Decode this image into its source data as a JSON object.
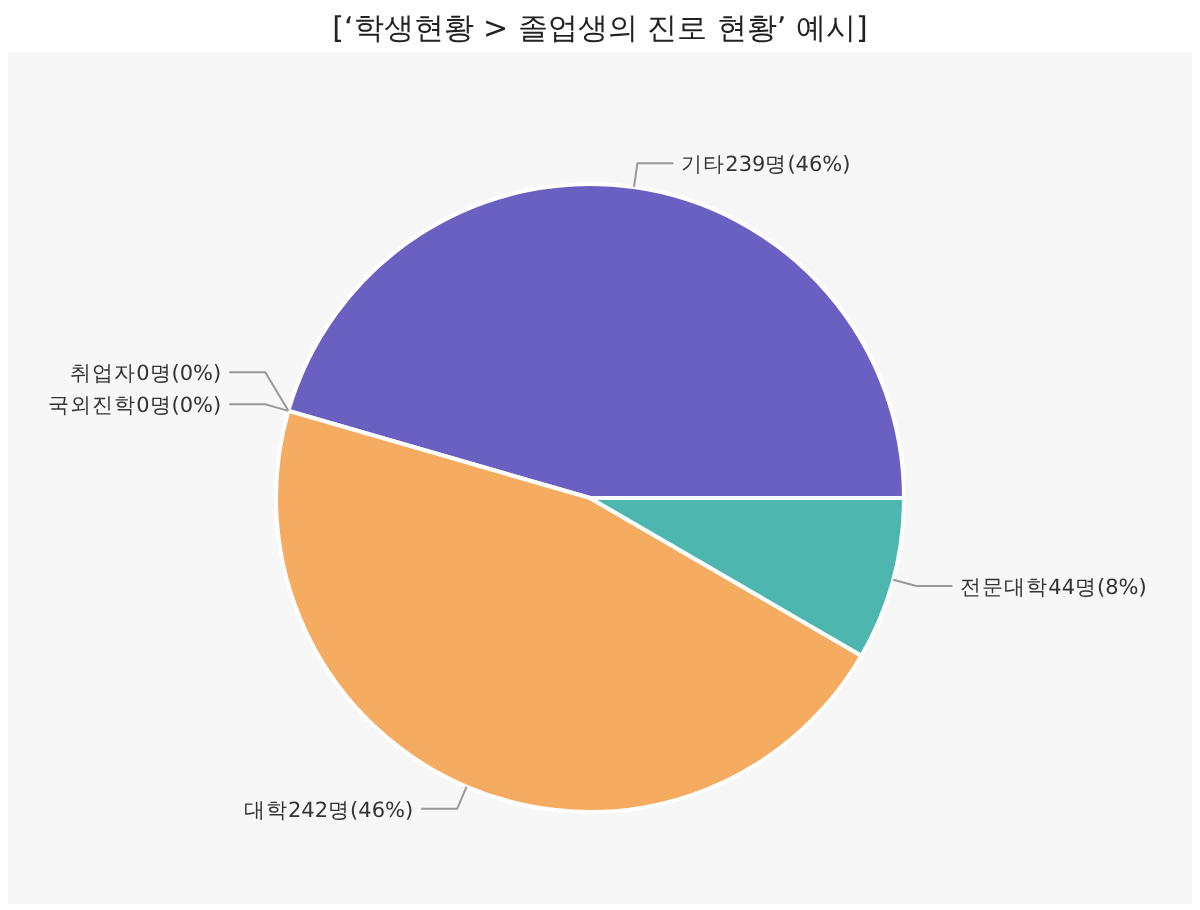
{
  "chart_data": {
    "type": "pie",
    "title": "[‘학생현황 > 졸업생의 진로 현황’ 예시]",
    "categories": [
      "기타",
      "취업자",
      "국외진학",
      "대학",
      "전문대학"
    ],
    "values": [
      239,
      0,
      0,
      242,
      44
    ],
    "value_labels": [
      "239명(46%)",
      "0명(0%)",
      "0명(0%)",
      "242명(46%)",
      "44명(8%)"
    ],
    "colors": [
      "#6a60c2",
      "#9e9e9e",
      "#5b8fd6",
      "#f5ac60",
      "#4db6ae"
    ]
  }
}
